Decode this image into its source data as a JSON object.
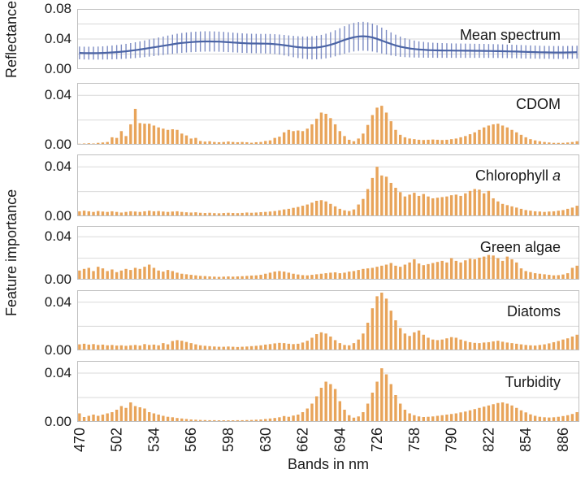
{
  "figure": {
    "x_axis_title": "Bands in nm",
    "y_axis_title_top": "Reflectance",
    "y_axis_title_bottom": "Feature importance",
    "colors": {
      "bar": "#E8A45A",
      "line": "#4B64A5",
      "error_bar": "#7D8CC3",
      "grid": "#D9D9D9",
      "border": "#C0C0C0",
      "text": "#1A1A1A",
      "background": "#FFFFFF"
    }
  },
  "chart_data": {
    "type": "multi-panel",
    "x_label": "Bands in nm",
    "legend_position": "inside-top-right",
    "grid": "horizontal",
    "x_tick_labels": [
      "470",
      "502",
      "534",
      "566",
      "598",
      "630",
      "662",
      "694",
      "726",
      "758",
      "790",
      "822",
      "854",
      "886"
    ],
    "bands_nm": [
      470,
      474,
      478,
      482,
      486,
      490,
      494,
      498,
      502,
      506,
      510,
      514,
      518,
      522,
      526,
      530,
      534,
      538,
      542,
      546,
      550,
      554,
      558,
      562,
      566,
      570,
      574,
      578,
      582,
      586,
      590,
      594,
      598,
      602,
      606,
      610,
      614,
      618,
      622,
      626,
      630,
      634,
      638,
      642,
      646,
      650,
      654,
      658,
      662,
      666,
      670,
      674,
      678,
      682,
      686,
      690,
      694,
      698,
      702,
      706,
      710,
      714,
      718,
      722,
      726,
      730,
      734,
      738,
      742,
      746,
      750,
      754,
      758,
      762,
      766,
      770,
      774,
      778,
      782,
      786,
      790,
      794,
      798,
      802,
      806,
      810,
      814,
      818,
      822,
      826,
      830,
      834,
      838,
      842,
      846,
      850,
      854,
      858,
      862,
      866,
      870,
      874,
      878,
      882,
      886,
      890,
      894,
      898
    ],
    "panels": [
      {
        "id": "mean-spectrum",
        "label": "Mean spectrum",
        "label_italic": "",
        "type": "line+errorbars",
        "y_axis": "Reflectance",
        "ylim": [
          0,
          0.08
        ],
        "y_ticks": [
          [
            0,
            "0.00"
          ],
          [
            0.04,
            "0.04"
          ],
          [
            0.08,
            "0.08"
          ]
        ],
        "gridlines": [
          0.02,
          0.04,
          0.06
        ],
        "values": [
          0.0215,
          0.0213,
          0.0212,
          0.0212,
          0.0213,
          0.0215,
          0.0218,
          0.0222,
          0.0226,
          0.0231,
          0.0237,
          0.0244,
          0.0252,
          0.0261,
          0.027,
          0.028,
          0.029,
          0.03,
          0.031,
          0.032,
          0.033,
          0.034,
          0.0348,
          0.0354,
          0.0359,
          0.0363,
          0.0366,
          0.0368,
          0.0368,
          0.0367,
          0.0365,
          0.0362,
          0.0358,
          0.0354,
          0.035,
          0.0346,
          0.0343,
          0.0341,
          0.034,
          0.0339,
          0.0338,
          0.0336,
          0.0332,
          0.0326,
          0.0318,
          0.0309,
          0.03,
          0.0292,
          0.0286,
          0.0283,
          0.0283,
          0.0287,
          0.0295,
          0.0307,
          0.0323,
          0.0343,
          0.0365,
          0.0388,
          0.0408,
          0.0424,
          0.0434,
          0.0437,
          0.0432,
          0.042,
          0.0402,
          0.038,
          0.0357,
          0.0335,
          0.0315,
          0.0298,
          0.0285,
          0.0275,
          0.0267,
          0.0261,
          0.0257,
          0.0253,
          0.0251,
          0.0249,
          0.0248,
          0.0247,
          0.0246,
          0.0245,
          0.0245,
          0.0244,
          0.0244,
          0.0243,
          0.0243,
          0.0242,
          0.0241,
          0.024,
          0.0239,
          0.0238,
          0.0236,
          0.0235,
          0.0233,
          0.0231,
          0.0229,
          0.0227,
          0.0226,
          0.0224,
          0.0223,
          0.0222,
          0.0221,
          0.0221,
          0.0221,
          0.0222,
          0.0223,
          0.0225
        ],
        "error": [
          0.0085,
          0.0085,
          0.0086,
          0.0086,
          0.0087,
          0.0088,
          0.009,
          0.0092,
          0.0094,
          0.0096,
          0.0099,
          0.0102,
          0.0105,
          0.0108,
          0.0111,
          0.0114,
          0.0117,
          0.012,
          0.0123,
          0.0126,
          0.0128,
          0.013,
          0.0132,
          0.0133,
          0.0134,
          0.0135,
          0.0135,
          0.0135,
          0.0135,
          0.0134,
          0.0134,
          0.0133,
          0.0132,
          0.0131,
          0.013,
          0.013,
          0.0129,
          0.0129,
          0.0129,
          0.0129,
          0.013,
          0.0131,
          0.0132,
          0.0134,
          0.0136,
          0.0139,
          0.0142,
          0.0145,
          0.0148,
          0.0151,
          0.0154,
          0.0157,
          0.016,
          0.0164,
          0.0168,
          0.0173,
          0.0178,
          0.0183,
          0.0187,
          0.019,
          0.0192,
          0.0192,
          0.019,
          0.0186,
          0.018,
          0.0172,
          0.0163,
          0.0153,
          0.0143,
          0.0134,
          0.0126,
          0.0119,
          0.0113,
          0.0108,
          0.0105,
          0.0102,
          0.01,
          0.0099,
          0.0098,
          0.0097,
          0.0096,
          0.0096,
          0.0095,
          0.0095,
          0.0094,
          0.0094,
          0.0093,
          0.0093,
          0.0092,
          0.0092,
          0.0091,
          0.0091,
          0.009,
          0.009,
          0.0089,
          0.0089,
          0.0088,
          0.0088,
          0.0087,
          0.0087,
          0.0086,
          0.0086,
          0.0086,
          0.0086,
          0.0086,
          0.0086,
          0.0086,
          0.0086
        ]
      },
      {
        "id": "cdom",
        "label": "CDOM",
        "label_italic": "",
        "type": "bar",
        "y_axis": "Feature importance",
        "ylim": [
          0,
          0.05
        ],
        "y_ticks": [
          [
            0,
            "0.00"
          ],
          [
            0.04,
            "0.04"
          ]
        ],
        "gridlines": [
          0.02,
          0.04
        ],
        "values": [
          0.0008,
          0.001,
          0.0012,
          0.001,
          0.0015,
          0.0018,
          0.0022,
          0.006,
          0.0055,
          0.011,
          0.007,
          0.0165,
          0.029,
          0.0175,
          0.017,
          0.017,
          0.0155,
          0.014,
          0.013,
          0.012,
          0.0125,
          0.012,
          0.009,
          0.0075,
          0.005,
          0.0055,
          0.003,
          0.0025,
          0.0028,
          0.0022,
          0.002,
          0.0022,
          0.0026,
          0.0022,
          0.002,
          0.0022,
          0.002,
          0.0016,
          0.002,
          0.0022,
          0.003,
          0.0035,
          0.0055,
          0.0065,
          0.01,
          0.012,
          0.011,
          0.0115,
          0.011,
          0.013,
          0.0165,
          0.021,
          0.026,
          0.025,
          0.0215,
          0.0165,
          0.011,
          0.007,
          0.004,
          0.0028,
          0.005,
          0.009,
          0.016,
          0.024,
          0.03,
          0.0315,
          0.026,
          0.019,
          0.012,
          0.008,
          0.006,
          0.005,
          0.0045,
          0.004,
          0.0038,
          0.004,
          0.0042,
          0.004,
          0.0038,
          0.004,
          0.0045,
          0.005,
          0.006,
          0.007,
          0.0085,
          0.01,
          0.012,
          0.014,
          0.0155,
          0.0165,
          0.017,
          0.0155,
          0.014,
          0.012,
          0.01,
          0.008,
          0.006,
          0.0045,
          0.0035,
          0.0028,
          0.0022,
          0.0018,
          0.0015,
          0.0015,
          0.0015,
          0.0018,
          0.0022,
          0.0028
        ]
      },
      {
        "id": "chlorophyll-a",
        "label": "Chlorophyll ",
        "label_italic": "a",
        "type": "bar",
        "y_axis": "Feature importance",
        "ylim": [
          0,
          0.05
        ],
        "y_ticks": [
          [
            0,
            "0.00"
          ],
          [
            0.04,
            "0.04"
          ]
        ],
        "gridlines": [
          0.02,
          0.04
        ],
        "values": [
          0.004,
          0.0045,
          0.004,
          0.0035,
          0.0042,
          0.0038,
          0.0035,
          0.004,
          0.0035,
          0.003,
          0.0035,
          0.004,
          0.0038,
          0.0035,
          0.004,
          0.0045,
          0.004,
          0.0042,
          0.0038,
          0.0035,
          0.0038,
          0.004,
          0.0035,
          0.0032,
          0.003,
          0.0032,
          0.0028,
          0.0026,
          0.0028,
          0.0025,
          0.0024,
          0.0026,
          0.0028,
          0.0026,
          0.0025,
          0.0027,
          0.003,
          0.0028,
          0.003,
          0.0033,
          0.0035,
          0.0038,
          0.0042,
          0.0048,
          0.0055,
          0.006,
          0.0068,
          0.0075,
          0.0085,
          0.0095,
          0.011,
          0.0125,
          0.013,
          0.012,
          0.01,
          0.008,
          0.006,
          0.0048,
          0.0042,
          0.0055,
          0.0095,
          0.014,
          0.022,
          0.031,
          0.04,
          0.033,
          0.032,
          0.027,
          0.023,
          0.0195,
          0.016,
          0.0175,
          0.019,
          0.0165,
          0.018,
          0.016,
          0.0145,
          0.015,
          0.0155,
          0.016,
          0.017,
          0.0175,
          0.0165,
          0.0185,
          0.0205,
          0.022,
          0.0215,
          0.0185,
          0.0205,
          0.0145,
          0.012,
          0.01,
          0.009,
          0.008,
          0.007,
          0.006,
          0.005,
          0.0045,
          0.004,
          0.0038,
          0.0035,
          0.0038,
          0.004,
          0.0045,
          0.005,
          0.006,
          0.007,
          0.0085
        ]
      },
      {
        "id": "green-algae",
        "label": "Green algae",
        "label_italic": "",
        "type": "bar",
        "y_axis": "Feature importance",
        "ylim": [
          0,
          0.05
        ],
        "y_ticks": [
          [
            0,
            "0.00"
          ],
          [
            0.04,
            "0.04"
          ]
        ],
        "gridlines": [
          0.02,
          0.04
        ],
        "values": [
          0.0085,
          0.01,
          0.011,
          0.008,
          0.012,
          0.0105,
          0.008,
          0.0095,
          0.007,
          0.0085,
          0.01,
          0.009,
          0.011,
          0.01,
          0.012,
          0.014,
          0.011,
          0.0085,
          0.0075,
          0.009,
          0.008,
          0.0065,
          0.0055,
          0.005,
          0.0045,
          0.004,
          0.0035,
          0.0033,
          0.003,
          0.0028,
          0.0026,
          0.0028,
          0.003,
          0.0028,
          0.003,
          0.0032,
          0.0035,
          0.0038,
          0.004,
          0.0045,
          0.0055,
          0.0065,
          0.0075,
          0.008,
          0.0075,
          0.0065,
          0.0055,
          0.0048,
          0.0042,
          0.004,
          0.0045,
          0.005,
          0.0055,
          0.006,
          0.0065,
          0.0068,
          0.006,
          0.0065,
          0.0075,
          0.008,
          0.009,
          0.01,
          0.0105,
          0.011,
          0.012,
          0.013,
          0.014,
          0.0155,
          0.013,
          0.012,
          0.014,
          0.016,
          0.019,
          0.015,
          0.0135,
          0.0145,
          0.0155,
          0.0165,
          0.0175,
          0.016,
          0.02,
          0.0175,
          0.016,
          0.018,
          0.0195,
          0.019,
          0.0205,
          0.0215,
          0.023,
          0.0225,
          0.02,
          0.0175,
          0.0215,
          0.019,
          0.016,
          0.0105,
          0.008,
          0.007,
          0.006,
          0.0055,
          0.005,
          0.0045,
          0.004,
          0.0042,
          0.0048,
          0.006,
          0.011,
          0.013
        ]
      },
      {
        "id": "diatoms",
        "label": "Diatoms",
        "label_italic": "",
        "type": "bar",
        "y_axis": "Feature importance",
        "ylim": [
          0,
          0.05
        ],
        "y_ticks": [
          [
            0,
            "0.00"
          ],
          [
            0.04,
            "0.04"
          ]
        ],
        "gridlines": [
          0.02,
          0.04
        ],
        "values": [
          0.005,
          0.0055,
          0.0048,
          0.0052,
          0.0045,
          0.0048,
          0.0042,
          0.0045,
          0.004,
          0.0042,
          0.0038,
          0.0042,
          0.0045,
          0.004,
          0.0052,
          0.0045,
          0.0048,
          0.0042,
          0.006,
          0.005,
          0.0078,
          0.0085,
          0.008,
          0.007,
          0.006,
          0.005,
          0.0042,
          0.0038,
          0.0035,
          0.0032,
          0.003,
          0.003,
          0.0032,
          0.003,
          0.0028,
          0.003,
          0.0032,
          0.0035,
          0.0038,
          0.0042,
          0.0048,
          0.0052,
          0.0058,
          0.0062,
          0.006,
          0.0055,
          0.0052,
          0.0055,
          0.0065,
          0.008,
          0.0105,
          0.0135,
          0.015,
          0.014,
          0.0115,
          0.0085,
          0.006,
          0.0045,
          0.0042,
          0.006,
          0.009,
          0.014,
          0.023,
          0.035,
          0.045,
          0.048,
          0.043,
          0.033,
          0.025,
          0.0185,
          0.014,
          0.012,
          0.015,
          0.0165,
          0.013,
          0.0105,
          0.009,
          0.0085,
          0.009,
          0.01,
          0.011,
          0.0105,
          0.009,
          0.0078,
          0.0068,
          0.0062,
          0.006,
          0.0065,
          0.0068,
          0.0075,
          0.008,
          0.0072,
          0.0065,
          0.006,
          0.0055,
          0.005,
          0.0045,
          0.0042,
          0.004,
          0.0045,
          0.005,
          0.0058,
          0.0068,
          0.0078,
          0.009,
          0.01,
          0.0115,
          0.013
        ]
      },
      {
        "id": "turbidity",
        "label": "Turbidity",
        "label_italic": "",
        "type": "bar",
        "y_axis": "Feature importance",
        "ylim": [
          0,
          0.05
        ],
        "y_ticks": [
          [
            0,
            "0.00"
          ],
          [
            0.04,
            "0.04"
          ]
        ],
        "gridlines": [
          0.02,
          0.04
        ],
        "values": [
          0.007,
          0.004,
          0.005,
          0.006,
          0.005,
          0.006,
          0.007,
          0.008,
          0.01,
          0.013,
          0.0115,
          0.016,
          0.013,
          0.012,
          0.011,
          0.008,
          0.007,
          0.006,
          0.005,
          0.0042,
          0.0038,
          0.0032,
          0.0028,
          0.0024,
          0.002,
          0.0018,
          0.0016,
          0.0015,
          0.0014,
          0.0014,
          0.0013,
          0.0013,
          0.0013,
          0.0013,
          0.0014,
          0.0014,
          0.0015,
          0.0016,
          0.0018,
          0.002,
          0.0024,
          0.0028,
          0.0032,
          0.0038,
          0.0048,
          0.0042,
          0.0052,
          0.006,
          0.008,
          0.011,
          0.015,
          0.021,
          0.028,
          0.033,
          0.031,
          0.027,
          0.017,
          0.01,
          0.0055,
          0.0035,
          0.0045,
          0.008,
          0.015,
          0.024,
          0.033,
          0.044,
          0.039,
          0.031,
          0.022,
          0.015,
          0.01,
          0.007,
          0.0055,
          0.0045,
          0.004,
          0.0042,
          0.0045,
          0.005,
          0.0055,
          0.006,
          0.0065,
          0.007,
          0.0078,
          0.0085,
          0.0095,
          0.0105,
          0.0115,
          0.0125,
          0.0135,
          0.0145,
          0.0155,
          0.016,
          0.015,
          0.0135,
          0.0115,
          0.0095,
          0.0078,
          0.0062,
          0.005,
          0.0042,
          0.0038,
          0.0036,
          0.0038,
          0.0042,
          0.0048,
          0.0055,
          0.0065,
          0.008
        ]
      }
    ]
  }
}
